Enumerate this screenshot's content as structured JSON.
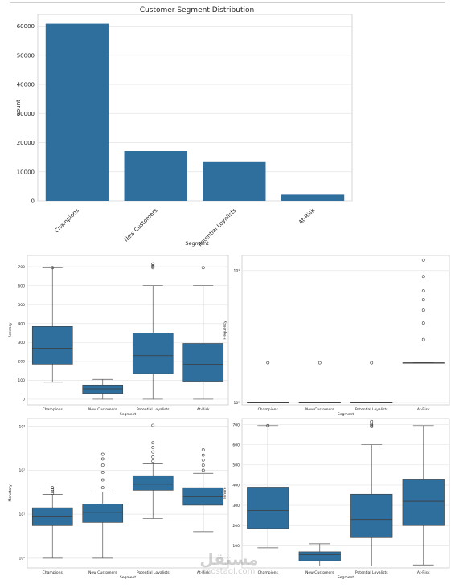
{
  "chart_data": [
    {
      "id": "bar",
      "type": "bar",
      "title": "Customer Segment Distribution",
      "xlabel": "Segment",
      "ylabel": "count",
      "categories": [
        "Champions",
        "New Customers",
        "Potential Loyalists",
        "At-Risk"
      ],
      "values": [
        60800,
        17100,
        13300,
        2100
      ],
      "ylim": [
        0,
        64000
      ],
      "yticks": [
        0,
        10000,
        20000,
        30000,
        40000,
        50000,
        60000
      ],
      "grid": true,
      "color": "#2e6f9e"
    },
    {
      "id": "recency",
      "type": "box",
      "xlabel": "Segment",
      "ylabel": "Recency",
      "categories": [
        "Champions",
        "New Customers",
        "Potential Loyalists",
        "At-Risk"
      ],
      "ylim": [
        -30,
        760
      ],
      "yticks": [
        0,
        100,
        200,
        300,
        400,
        500,
        600,
        700
      ],
      "boxes": [
        {
          "whisker_low": 90,
          "q1": 185,
          "median": 270,
          "q3": 385,
          "whisker_high": 695,
          "outliers": [
            695
          ]
        },
        {
          "whisker_low": 0,
          "q1": 30,
          "median": 55,
          "q3": 75,
          "whisker_high": 105,
          "outliers": []
        },
        {
          "whisker_low": 0,
          "q1": 135,
          "median": 230,
          "q3": 350,
          "whisker_high": 600,
          "outliers": [
            695,
            700,
            705,
            715
          ]
        },
        {
          "whisker_low": 0,
          "q1": 95,
          "median": 185,
          "q3": 295,
          "whisker_high": 600,
          "outliers": [
            695
          ]
        }
      ],
      "color": "#2e6f9e"
    },
    {
      "id": "frequency",
      "type": "box",
      "scale": "log",
      "xlabel": "Segment",
      "ylabel": "Frequency",
      "categories": [
        "Champions",
        "New Customers",
        "Potential Loyalists",
        "At-Risk"
      ],
      "ylim": [
        0.96,
        13
      ],
      "yticks": [
        1,
        10
      ],
      "ytick_labels": [
        "10⁰",
        "10¹"
      ],
      "boxes": [
        {
          "whisker_low": 1,
          "q1": 1,
          "median": 1,
          "q3": 1,
          "whisker_high": 1,
          "outliers": [
            2
          ]
        },
        {
          "whisker_low": 1,
          "q1": 1,
          "median": 1,
          "q3": 1,
          "whisker_high": 1,
          "outliers": [
            2
          ]
        },
        {
          "whisker_low": 1,
          "q1": 1,
          "median": 1,
          "q3": 1,
          "whisker_high": 1,
          "outliers": [
            2
          ]
        },
        {
          "whisker_low": 2,
          "q1": 2,
          "median": 2,
          "q3": 2,
          "whisker_high": 2,
          "outliers": [
            3,
            4,
            5,
            6,
            7,
            9,
            12
          ]
        }
      ],
      "color": "#2e6f9e"
    },
    {
      "id": "monetary",
      "type": "box",
      "scale": "log",
      "xlabel": "Segment",
      "ylabel": "Monetary",
      "categories": [
        "Champions",
        "New Customers",
        "Potential Loyalists",
        "At-Risk"
      ],
      "ylim": [
        0.6,
        1500
      ],
      "yticks": [
        1,
        10,
        100,
        1000
      ],
      "ytick_labels": [
        "10⁰",
        "10¹",
        "10²",
        "10³"
      ],
      "boxes": [
        {
          "whisker_low": 1,
          "q1": 5.5,
          "median": 9,
          "q3": 14,
          "whisker_high": 28,
          "outliers": [
            30,
            33,
            36,
            40
          ]
        },
        {
          "whisker_low": 1,
          "q1": 6.5,
          "median": 11,
          "q3": 17,
          "whisker_high": 32,
          "outliers": [
            40,
            60,
            90,
            130,
            180,
            230
          ]
        },
        {
          "whisker_low": 8,
          "q1": 35,
          "median": 48,
          "q3": 75,
          "whisker_high": 140,
          "outliers": [
            160,
            200,
            260,
            330,
            420,
            1050
          ]
        },
        {
          "whisker_low": 4,
          "q1": 16,
          "median": 25,
          "q3": 40,
          "whisker_high": 85,
          "outliers": [
            100,
            130,
            170,
            220,
            290
          ]
        }
      ],
      "color": "#2e6f9e"
    },
    {
      "id": "tenure",
      "type": "box",
      "xlabel": "Segment",
      "ylabel": "Tenure",
      "categories": [
        "Champions",
        "New Customers",
        "Potential Loyalists",
        "At-Risk"
      ],
      "ylim": [
        -10,
        730
      ],
      "yticks": [
        100,
        200,
        300,
        400,
        500,
        600,
        700
      ],
      "boxes": [
        {
          "whisker_low": 90,
          "q1": 185,
          "median": 275,
          "q3": 390,
          "whisker_high": 695,
          "outliers": [
            695
          ]
        },
        {
          "whisker_low": 0,
          "q1": 25,
          "median": 55,
          "q3": 70,
          "whisker_high": 110,
          "outliers": []
        },
        {
          "whisker_low": 0,
          "q1": 140,
          "median": 230,
          "q3": 355,
          "whisker_high": 600,
          "outliers": [
            690,
            695,
            700,
            715
          ]
        },
        {
          "whisker_low": 5,
          "q1": 200,
          "median": 320,
          "q3": 430,
          "whisker_high": 695,
          "outliers": []
        }
      ],
      "color": "#2e6f9e"
    }
  ],
  "watermark": {
    "arabic": "مستقل",
    "latin": "mostaql.com"
  }
}
